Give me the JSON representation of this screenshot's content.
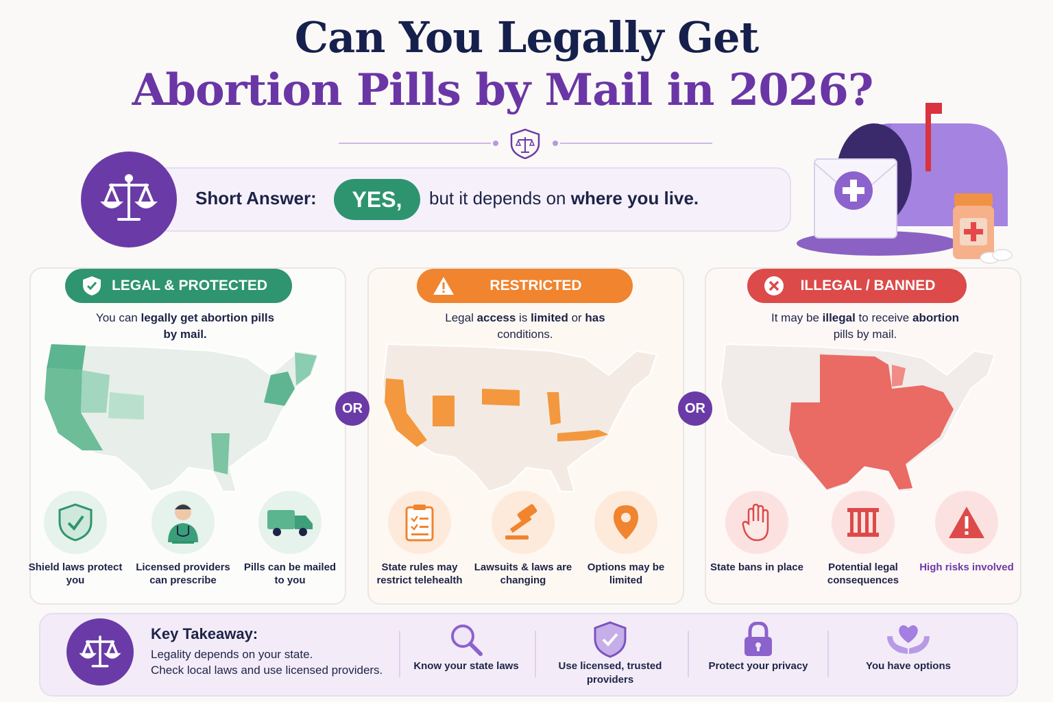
{
  "header": {
    "title_line1": "Can You Legally Get",
    "title_line2": "Abortion Pills by Mail in 2026?"
  },
  "short_answer": {
    "label": "Short Answer:",
    "yes": "YES,",
    "rest_plain": "but it depends on",
    "rest_bold": "where you live."
  },
  "or_label": "OR",
  "panels": [
    {
      "badge": "LEGAL & PROTECTED",
      "badge_icon": "shield-check-icon",
      "color": "#2f9470",
      "desc_parts": [
        "You can ",
        "legally get abortion pills",
        " ",
        "by mail."
      ],
      "features": [
        {
          "icon": "shield-icon",
          "label": "Shield laws protect you"
        },
        {
          "icon": "doctor-icon",
          "label": "Licensed providers can prescribe"
        },
        {
          "icon": "truck-icon",
          "label": "Pills can be mailed to you"
        }
      ]
    },
    {
      "badge": "RESTRICTED",
      "badge_icon": "warning-icon",
      "color": "#f0842f",
      "desc_parts": [
        "Legal ",
        "access",
        " is ",
        "limited",
        " or ",
        "has",
        " conditions."
      ],
      "features": [
        {
          "icon": "clipboard-icon",
          "label": "State rules may restrict telehealth"
        },
        {
          "icon": "gavel-icon",
          "label": "Lawsuits & laws are changing"
        },
        {
          "icon": "location-pin-icon",
          "label": "Options may be limited"
        }
      ]
    },
    {
      "badge": "ILLEGAL / BANNED",
      "badge_icon": "x-circle-icon",
      "color": "#dc4a4a",
      "desc_parts": [
        "It may be ",
        "illegal",
        " to receive ",
        "abortion",
        " pills by mail."
      ],
      "features": [
        {
          "icon": "hand-stop-icon",
          "label": "State bans in place"
        },
        {
          "icon": "jail-bars-icon",
          "label": "Potential legal consequences"
        },
        {
          "icon": "warning-triangle-icon",
          "label": "High risks involved"
        }
      ]
    }
  ],
  "key_takeaway": {
    "title": "Key Takeaway:",
    "line1": "Legality depends on your state.",
    "line2": "Check local laws and use licensed providers.",
    "items": [
      {
        "icon": "magnifier-icon",
        "label": "Know your state laws"
      },
      {
        "icon": "shield-check-icon",
        "label": "Use licensed, trusted providers"
      },
      {
        "icon": "lock-icon",
        "label": "Protect your privacy"
      },
      {
        "icon": "heart-hands-icon",
        "label": "You have options"
      }
    ]
  }
}
